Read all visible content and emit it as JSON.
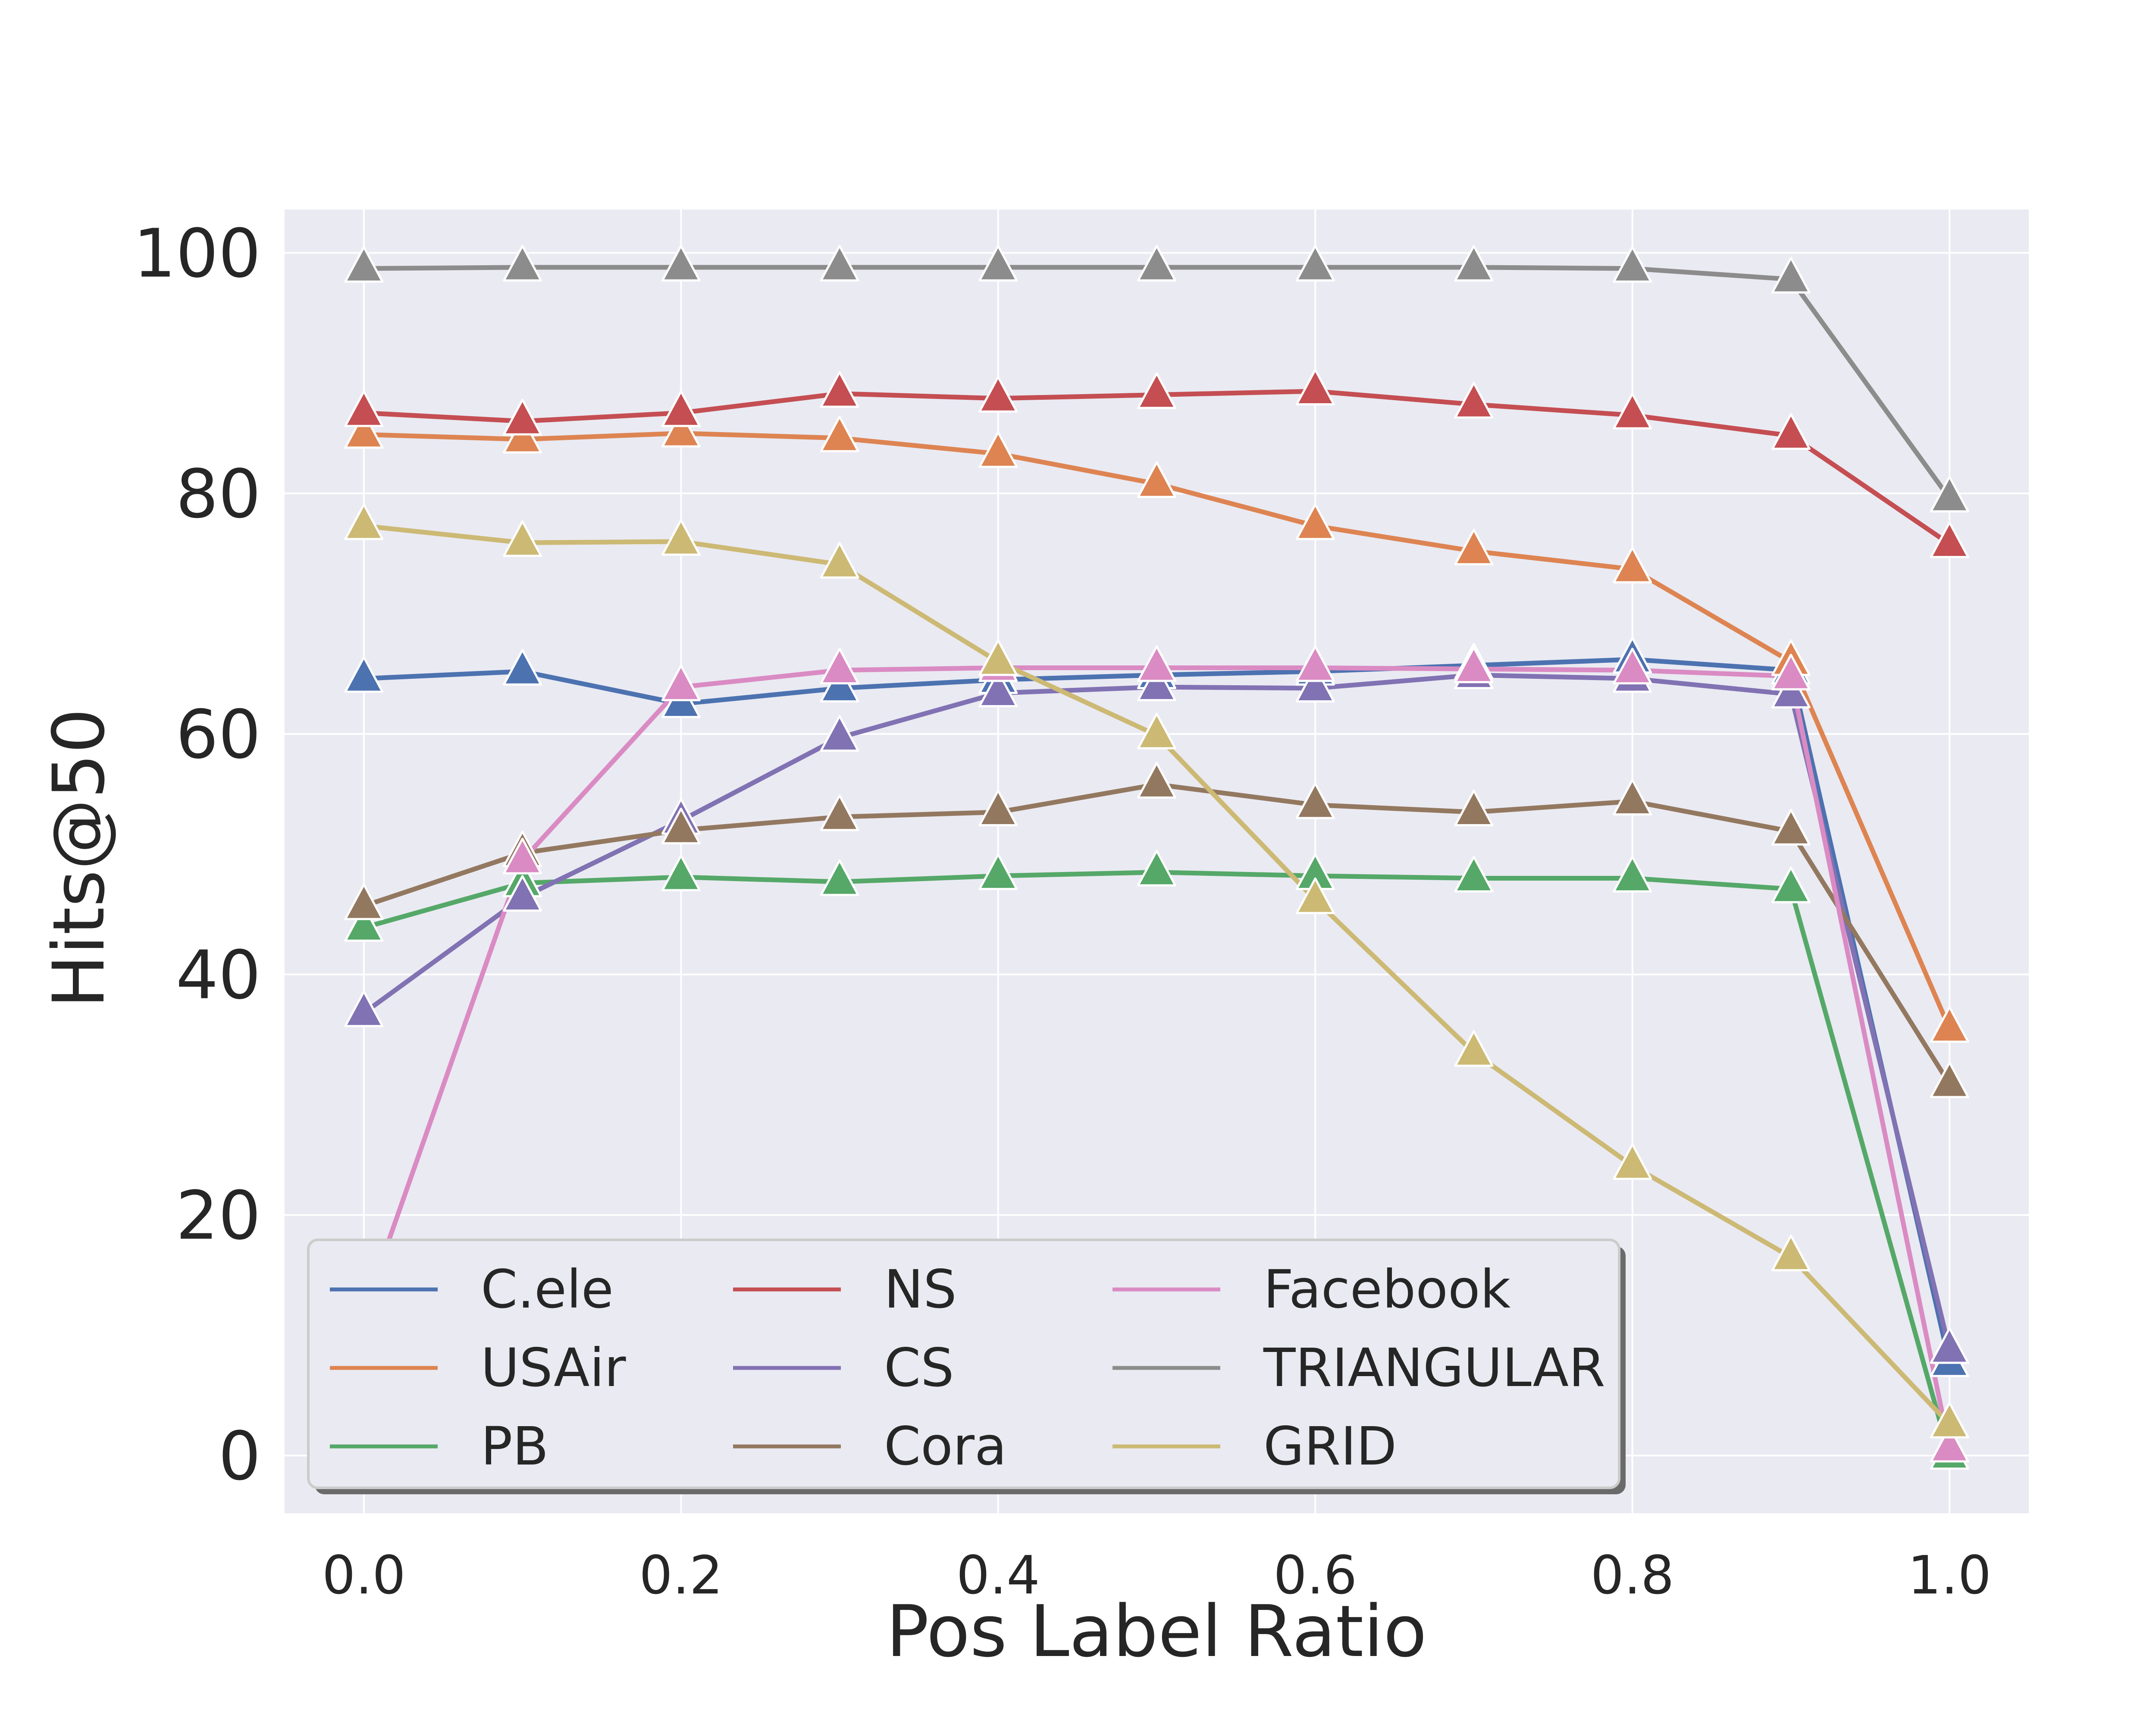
{
  "chart_data": {
    "type": "line",
    "xlabel": "Pos Label Ratio",
    "ylabel": "Hits@50",
    "xlim": [
      -0.05,
      1.05
    ],
    "ylim": [
      -4.8,
      103.6
    ],
    "x_ticks": [
      0.0,
      0.2,
      0.4,
      0.6,
      0.8,
      1.0
    ],
    "x_tick_labels": [
      "0.0",
      "0.2",
      "0.4",
      "0.6",
      "0.8",
      "1.0"
    ],
    "y_ticks": [
      0,
      20,
      40,
      60,
      80,
      100
    ],
    "y_tick_labels": [
      "0",
      "20",
      "40",
      "60",
      "80",
      "100"
    ],
    "grid": true,
    "background": "#eaeaf2",
    "marker": "triangle",
    "legend": {
      "placement": "lower-left",
      "columns": 3
    },
    "x": [
      0.0,
      0.1,
      0.2,
      0.3,
      0.4,
      0.5,
      0.6,
      0.7,
      0.8,
      0.9,
      1.0
    ],
    "series": [
      {
        "name": "C.ele",
        "color": "#4c72b0",
        "values": [
          64.6,
          65.2,
          62.5,
          63.8,
          64.5,
          64.9,
          65.2,
          65.7,
          66.2,
          65.3,
          7.7
        ]
      },
      {
        "name": "USAir",
        "color": "#dd8452",
        "values": [
          84.9,
          84.5,
          85.0,
          84.6,
          83.3,
          80.8,
          77.3,
          75.2,
          73.7,
          66.0,
          35.5
        ]
      },
      {
        "name": "PB",
        "color": "#55a868",
        "values": [
          43.9,
          47.6,
          48.1,
          47.7,
          48.2,
          48.5,
          48.2,
          48.0,
          48.0,
          47.1,
          0.0
        ]
      },
      {
        "name": "NS",
        "color": "#c44e52",
        "values": [
          86.7,
          86.0,
          86.7,
          88.3,
          87.9,
          88.2,
          88.5,
          87.4,
          86.5,
          84.8,
          75.8
        ]
      },
      {
        "name": "CS",
        "color": "#8172b3",
        "values": [
          36.8,
          46.4,
          52.8,
          59.7,
          63.4,
          63.9,
          63.8,
          64.9,
          64.6,
          63.3,
          8.8
        ]
      },
      {
        "name": "Cora",
        "color": "#937860",
        "values": [
          45.7,
          50.1,
          52.0,
          53.1,
          53.5,
          55.8,
          54.1,
          53.5,
          54.4,
          51.9,
          30.9
        ]
      },
      {
        "name": "Facebook",
        "color": "#da8bc3",
        "values": [
          12.0,
          49.5,
          63.9,
          65.3,
          65.5,
          65.5,
          65.5,
          65.4,
          65.3,
          64.8,
          0.6
        ]
      },
      {
        "name": "TRIANGULAR",
        "color": "#8c8c8c",
        "values": [
          98.7,
          98.8,
          98.8,
          98.8,
          98.8,
          98.8,
          98.8,
          98.8,
          98.7,
          97.8,
          79.6
        ]
      },
      {
        "name": "GRID",
        "color": "#ccb974",
        "values": [
          77.3,
          75.9,
          76.0,
          74.1,
          66.0,
          59.9,
          46.2,
          33.5,
          24.1,
          16.5,
          2.6
        ]
      }
    ]
  }
}
